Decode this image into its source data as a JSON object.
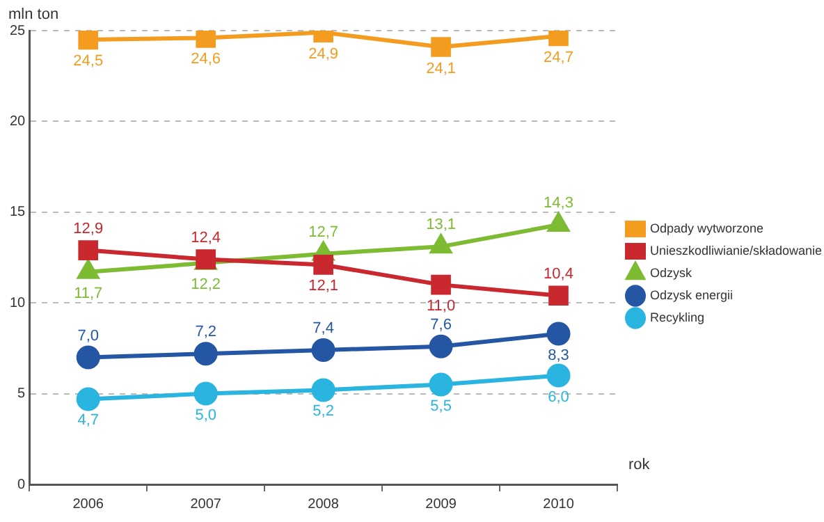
{
  "chart_data": {
    "type": "line",
    "ylabel": "mln ton",
    "xlabel": "rok",
    "categories": [
      "2006",
      "2007",
      "2008",
      "2009",
      "2010"
    ],
    "series": [
      {
        "name": "Odpady wytworzone",
        "color": "#f39c1f",
        "marker": "square",
        "values": [
          24.5,
          24.6,
          24.9,
          24.1,
          24.7
        ],
        "value_labels": [
          "24,5",
          "24,6",
          "24,9",
          "24,1",
          "24,7"
        ]
      },
      {
        "name": "Unieszkodliwianie/składowanie",
        "color": "#c8282e",
        "marker": "square",
        "values": [
          12.9,
          12.4,
          12.1,
          11.0,
          10.4
        ],
        "value_labels": [
          "12,9",
          "12,4",
          "12,1",
          "11,0",
          "10,4"
        ]
      },
      {
        "name": "Odzysk",
        "color": "#7dbb32",
        "marker": "triangle",
        "values": [
          11.7,
          12.2,
          12.7,
          13.1,
          14.3
        ],
        "value_labels": [
          "11,7",
          "12,2",
          "12,7",
          "13,1",
          "14,3"
        ]
      },
      {
        "name": "Odzysk energii",
        "color": "#2456a4",
        "marker": "circle",
        "values": [
          7.0,
          7.2,
          7.4,
          7.6,
          8.3
        ],
        "value_labels": [
          "7,0",
          "7,2",
          "7,4",
          "7,6",
          "8,3"
        ]
      },
      {
        "name": "Recykling",
        "color": "#2ab4e0",
        "marker": "circle",
        "values": [
          4.7,
          5.0,
          5.2,
          5.5,
          6.0
        ],
        "value_labels": [
          "4,7",
          "5,0",
          "5,2",
          "5,5",
          "6,0"
        ]
      }
    ],
    "ylim": [
      0,
      25
    ],
    "yticks": [
      0,
      5,
      10,
      15,
      20,
      25
    ],
    "grid": "y",
    "legend": "right",
    "line_style": "solid"
  }
}
